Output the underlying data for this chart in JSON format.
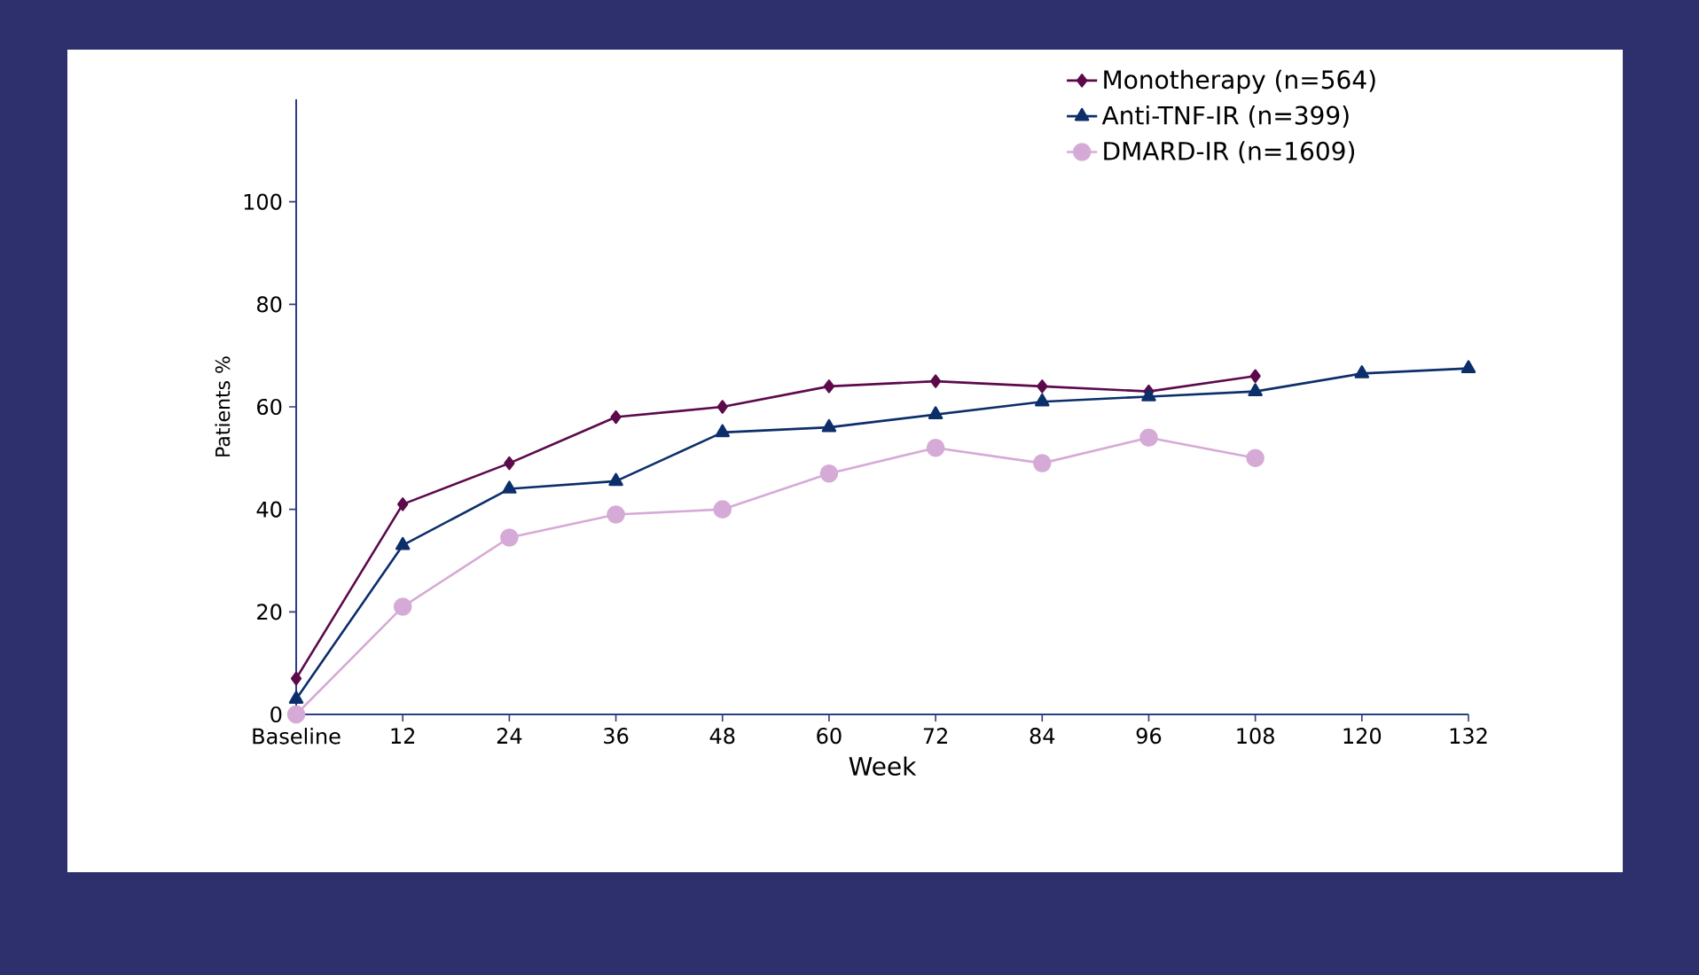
{
  "chart_data": {
    "type": "line",
    "xlabel": "Week",
    "ylabel": "Patients %",
    "xlim": [
      0,
      132
    ],
    "ylim": [
      0,
      120
    ],
    "xticks": [
      {
        "value": 0,
        "label": "Baseline"
      },
      12,
      24,
      36,
      48,
      60,
      72,
      84,
      96,
      108,
      120,
      132
    ],
    "yticks": [
      0,
      20,
      40,
      60,
      80,
      100
    ],
    "legend": "top right",
    "grid": false,
    "line_style": "solid",
    "series": [
      {
        "name": "Monotherapy (n=564)",
        "color": "#5c0a4c",
        "marker": "diamond",
        "x": [
          0,
          12,
          24,
          36,
          48,
          60,
          72,
          84,
          96,
          108
        ],
        "values": [
          7,
          41,
          49,
          58,
          60,
          64,
          65,
          64,
          63,
          66
        ]
      },
      {
        "name": "Anti-TNF-IR (n=399)",
        "color": "#0c2f6b",
        "marker": "triangle",
        "x": [
          0,
          12,
          24,
          36,
          48,
          60,
          72,
          84,
          96,
          108,
          120,
          132
        ],
        "values": [
          3,
          33,
          44,
          45.5,
          55,
          56,
          58.5,
          61,
          62,
          63,
          66.5,
          67.5
        ]
      },
      {
        "name": "DMARD-IR (n=1609)",
        "color": "#d6aad6",
        "marker": "circle",
        "x": [
          0,
          12,
          24,
          36,
          48,
          60,
          72,
          84,
          96,
          108
        ],
        "values": [
          0,
          21,
          34.5,
          39,
          40,
          47,
          52,
          49,
          54,
          50
        ]
      }
    ]
  }
}
